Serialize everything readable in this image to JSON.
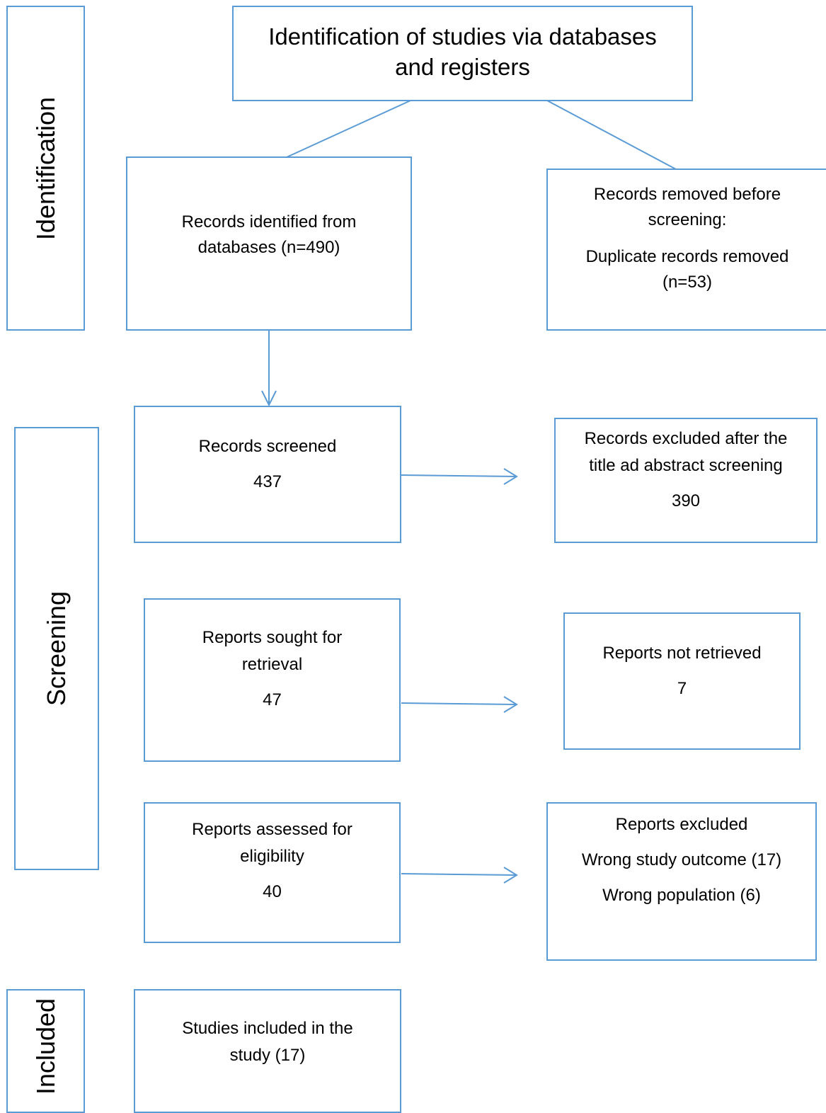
{
  "colors": {
    "border": "#5b9bd5",
    "text": "#000000",
    "background": "#ffffff"
  },
  "phases": {
    "identification": "Identification",
    "screening": "Screening",
    "included": "Included"
  },
  "top_box": {
    "line1": "Identification of studies via databases",
    "line2": "and registers"
  },
  "records_identified": {
    "line1": "Records identified from",
    "line2": "databases  (n=490)"
  },
  "records_removed": {
    "line1": "Records removed before",
    "line2": "screening:",
    "line3": "Duplicate records removed",
    "line4": "(n=53)"
  },
  "records_screened": {
    "label": "Records screened",
    "value": "437"
  },
  "records_excluded": {
    "line1": "Records excluded after the",
    "line2": "title ad abstract screening",
    "value": "390"
  },
  "reports_sought": {
    "line1": "Reports sought for",
    "line2": "retrieval",
    "value": "47"
  },
  "reports_not_retrieved": {
    "label": "Reports not retrieved",
    "value": "7"
  },
  "reports_assessed": {
    "line1": "Reports assessed for",
    "line2": "eligibility",
    "value": "40"
  },
  "reports_excluded": {
    "title": "Reports excluded",
    "reason1": "Wrong study outcome (17)",
    "reason2": "Wrong population (6)"
  },
  "studies_included": {
    "line1": "Studies included in the",
    "line2": "study (17)"
  }
}
